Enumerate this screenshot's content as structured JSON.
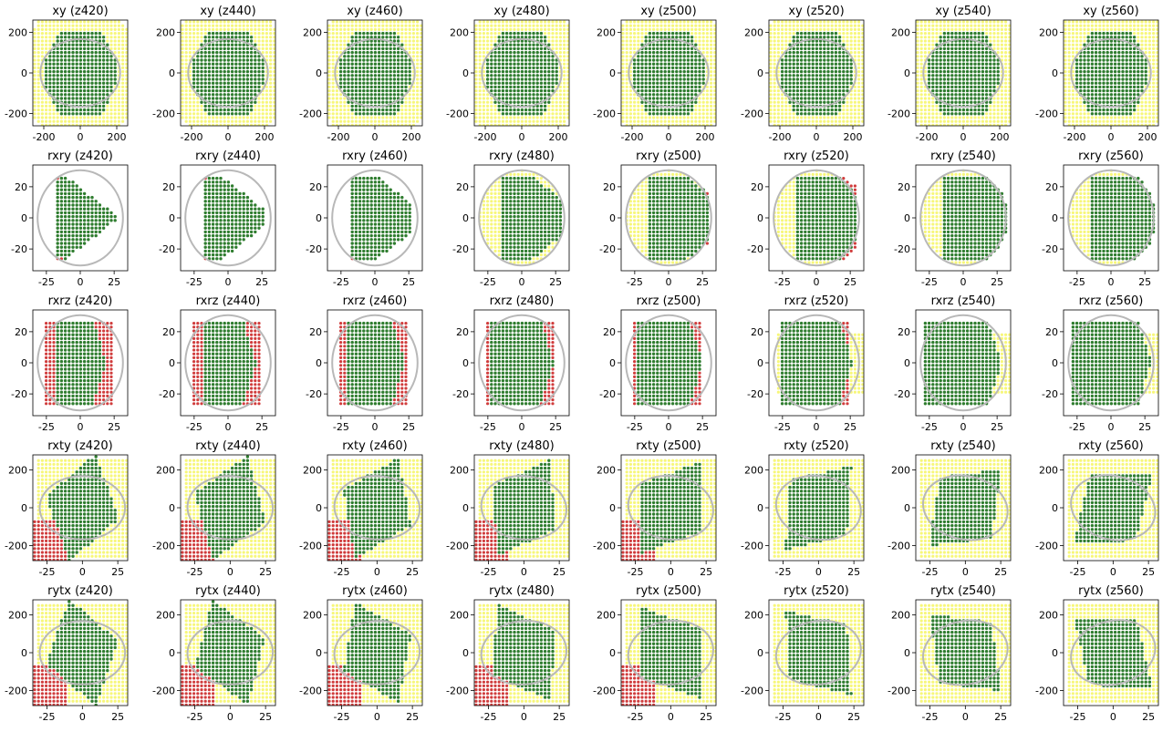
{
  "figure": {
    "rows": [
      "xy",
      "rxry",
      "rxrz",
      "rxty",
      "rytx"
    ],
    "z_values": [
      420,
      440,
      460,
      480,
      500,
      520,
      540,
      560
    ],
    "colors": {
      "inside": "#2f7d2f",
      "outside_ok": "#f7f77a",
      "fail": "#d03c3c",
      "edge": "#f0a050",
      "reference_circle": "#b8b8b8"
    }
  },
  "chart_data": {
    "type": "scatter",
    "layout": "5 rows x 8 columns of subplots",
    "panels": [
      {
        "title": "xy (z420)",
        "xlim": [
          -260,
          260
        ],
        "ylim": [
          -260,
          260
        ],
        "xticks": [
          -200,
          0,
          200
        ],
        "yticks": [
          -200,
          0,
          200
        ]
      },
      {
        "title": "xy (z440)",
        "xlim": [
          -260,
          260
        ],
        "ylim": [
          -260,
          260
        ],
        "xticks": [
          -200,
          0,
          200
        ],
        "yticks": [
          -200,
          0,
          200
        ]
      },
      {
        "title": "xy (z460)",
        "xlim": [
          -260,
          260
        ],
        "ylim": [
          -260,
          260
        ],
        "xticks": [
          -200,
          0,
          200
        ],
        "yticks": [
          -200,
          0,
          200
        ]
      },
      {
        "title": "xy (z480)",
        "xlim": [
          -260,
          260
        ],
        "ylim": [
          -260,
          260
        ],
        "xticks": [
          -200,
          0,
          200
        ],
        "yticks": [
          -200,
          0,
          200
        ]
      },
      {
        "title": "xy (z500)",
        "xlim": [
          -260,
          260
        ],
        "ylim": [
          -260,
          260
        ],
        "xticks": [
          -200,
          0,
          200
        ],
        "yticks": [
          -200,
          0,
          200
        ]
      },
      {
        "title": "xy (z520)",
        "xlim": [
          -260,
          260
        ],
        "ylim": [
          -260,
          260
        ],
        "xticks": [
          -200,
          0,
          200
        ],
        "yticks": [
          -200,
          0,
          200
        ]
      },
      {
        "title": "xy (z540)",
        "xlim": [
          -260,
          260
        ],
        "ylim": [
          -260,
          260
        ],
        "xticks": [
          -200,
          0,
          200
        ],
        "yticks": [
          -200,
          0,
          200
        ]
      },
      {
        "title": "xy (z560)",
        "xlim": [
          -260,
          260
        ],
        "ylim": [
          -260,
          260
        ],
        "xticks": [
          -200,
          0,
          200
        ],
        "yticks": [
          -200,
          0,
          200
        ]
      },
      {
        "title": "rxry (z420)",
        "xlim": [
          -35,
          35
        ],
        "ylim": [
          -34,
          34
        ],
        "xticks": [
          -25,
          0,
          25
        ],
        "yticks": [
          -20,
          0,
          20
        ]
      },
      {
        "title": "rxry (z440)",
        "xlim": [
          -35,
          35
        ],
        "ylim": [
          -34,
          34
        ],
        "xticks": [
          -25,
          0,
          25
        ],
        "yticks": [
          -20,
          0,
          20
        ]
      },
      {
        "title": "rxry (z460)",
        "xlim": [
          -35,
          35
        ],
        "ylim": [
          -34,
          34
        ],
        "xticks": [
          -25,
          0,
          25
        ],
        "yticks": [
          -20,
          0,
          20
        ]
      },
      {
        "title": "rxry (z480)",
        "xlim": [
          -35,
          35
        ],
        "ylim": [
          -34,
          34
        ],
        "xticks": [
          -25,
          0,
          25
        ],
        "yticks": [
          -20,
          0,
          20
        ]
      },
      {
        "title": "rxry (z500)",
        "xlim": [
          -35,
          35
        ],
        "ylim": [
          -34,
          34
        ],
        "xticks": [
          -25,
          0,
          25
        ],
        "yticks": [
          -20,
          0,
          20
        ]
      },
      {
        "title": "rxry (z520)",
        "xlim": [
          -35,
          35
        ],
        "ylim": [
          -34,
          34
        ],
        "xticks": [
          -25,
          0,
          25
        ],
        "yticks": [
          -20,
          0,
          20
        ]
      },
      {
        "title": "rxry (z540)",
        "xlim": [
          -35,
          35
        ],
        "ylim": [
          -34,
          34
        ],
        "xticks": [
          -25,
          0,
          25
        ],
        "yticks": [
          -20,
          0,
          20
        ]
      },
      {
        "title": "rxry (z560)",
        "xlim": [
          -35,
          35
        ],
        "ylim": [
          -34,
          34
        ],
        "xticks": [
          -25,
          0,
          25
        ],
        "yticks": [
          -20,
          0,
          20
        ]
      },
      {
        "title": "rxrz (z420)",
        "xlim": [
          -35,
          35
        ],
        "ylim": [
          -34,
          34
        ],
        "xticks": [
          -25,
          0,
          25
        ],
        "yticks": [
          -20,
          0,
          20
        ]
      },
      {
        "title": "rxrz (z440)",
        "xlim": [
          -35,
          35
        ],
        "ylim": [
          -34,
          34
        ],
        "xticks": [
          -25,
          0,
          25
        ],
        "yticks": [
          -20,
          0,
          20
        ]
      },
      {
        "title": "rxrz (z460)",
        "xlim": [
          -35,
          35
        ],
        "ylim": [
          -34,
          34
        ],
        "xticks": [
          -25,
          0,
          25
        ],
        "yticks": [
          -20,
          0,
          20
        ]
      },
      {
        "title": "rxrz (z480)",
        "xlim": [
          -35,
          35
        ],
        "ylim": [
          -34,
          34
        ],
        "xticks": [
          -25,
          0,
          25
        ],
        "yticks": [
          -20,
          0,
          20
        ]
      },
      {
        "title": "rxrz (z500)",
        "xlim": [
          -35,
          35
        ],
        "ylim": [
          -34,
          34
        ],
        "xticks": [
          -25,
          0,
          25
        ],
        "yticks": [
          -20,
          0,
          20
        ]
      },
      {
        "title": "rxrz (z520)",
        "xlim": [
          -35,
          35
        ],
        "ylim": [
          -34,
          34
        ],
        "xticks": [
          -25,
          0,
          25
        ],
        "yticks": [
          -20,
          0,
          20
        ]
      },
      {
        "title": "rxrz (z540)",
        "xlim": [
          -35,
          35
        ],
        "ylim": [
          -34,
          34
        ],
        "xticks": [
          -25,
          0,
          25
        ],
        "yticks": [
          -20,
          0,
          20
        ]
      },
      {
        "title": "rxrz (z560)",
        "xlim": [
          -35,
          35
        ],
        "ylim": [
          -34,
          34
        ],
        "xticks": [
          -25,
          0,
          25
        ],
        "yticks": [
          -20,
          0,
          20
        ]
      },
      {
        "title": "rxty (z420)",
        "xlim": [
          -35,
          32
        ],
        "ylim": [
          -280,
          280
        ],
        "xticks": [
          -25,
          0,
          25
        ],
        "yticks": [
          -200,
          0,
          200
        ]
      },
      {
        "title": "rxty (z440)",
        "xlim": [
          -35,
          32
        ],
        "ylim": [
          -280,
          280
        ],
        "xticks": [
          -25,
          0,
          25
        ],
        "yticks": [
          -200,
          0,
          200
        ]
      },
      {
        "title": "rxty (z460)",
        "xlim": [
          -35,
          32
        ],
        "ylim": [
          -280,
          280
        ],
        "xticks": [
          -25,
          0,
          25
        ],
        "yticks": [
          -200,
          0,
          200
        ]
      },
      {
        "title": "rxty (z480)",
        "xlim": [
          -35,
          32
        ],
        "ylim": [
          -280,
          280
        ],
        "xticks": [
          -25,
          0,
          25
        ],
        "yticks": [
          -200,
          0,
          200
        ]
      },
      {
        "title": "rxty (z500)",
        "xlim": [
          -35,
          32
        ],
        "ylim": [
          -280,
          280
        ],
        "xticks": [
          -25,
          0,
          25
        ],
        "yticks": [
          -200,
          0,
          200
        ]
      },
      {
        "title": "rxty (z520)",
        "xlim": [
          -35,
          32
        ],
        "ylim": [
          -280,
          280
        ],
        "xticks": [
          -25,
          0,
          25
        ],
        "yticks": [
          -200,
          0,
          200
        ]
      },
      {
        "title": "rxty (z540)",
        "xlim": [
          -35,
          32
        ],
        "ylim": [
          -280,
          280
        ],
        "xticks": [
          -25,
          0,
          25
        ],
        "yticks": [
          -200,
          0,
          200
        ]
      },
      {
        "title": "rxty (z560)",
        "xlim": [
          -35,
          32
        ],
        "ylim": [
          -280,
          280
        ],
        "xticks": [
          -25,
          0,
          25
        ],
        "yticks": [
          -200,
          0,
          200
        ]
      },
      {
        "title": "rytx (z420)",
        "xlim": [
          -35,
          32
        ],
        "ylim": [
          -280,
          280
        ],
        "xticks": [
          -25,
          0,
          25
        ],
        "yticks": [
          -200,
          0,
          200
        ]
      },
      {
        "title": "rytx (z440)",
        "xlim": [
          -35,
          32
        ],
        "ylim": [
          -280,
          280
        ],
        "xticks": [
          -25,
          0,
          25
        ],
        "yticks": [
          -200,
          0,
          200
        ]
      },
      {
        "title": "rytx (z460)",
        "xlim": [
          -35,
          32
        ],
        "ylim": [
          -280,
          280
        ],
        "xticks": [
          -25,
          0,
          25
        ],
        "yticks": [
          -200,
          0,
          200
        ]
      },
      {
        "title": "rytx (z480)",
        "xlim": [
          -35,
          32
        ],
        "ylim": [
          -280,
          280
        ],
        "xticks": [
          -25,
          0,
          25
        ],
        "yticks": [
          -200,
          0,
          200
        ]
      },
      {
        "title": "rytx (z500)",
        "xlim": [
          -35,
          32
        ],
        "ylim": [
          -280,
          280
        ],
        "xticks": [
          -25,
          0,
          25
        ],
        "yticks": [
          -200,
          0,
          200
        ]
      },
      {
        "title": "rytx (z520)",
        "xlim": [
          -35,
          32
        ],
        "ylim": [
          -280,
          280
        ],
        "xticks": [
          -25,
          0,
          25
        ],
        "yticks": [
          -200,
          0,
          200
        ]
      },
      {
        "title": "rytx (z540)",
        "xlim": [
          -35,
          32
        ],
        "ylim": [
          -280,
          280
        ],
        "xticks": [
          -25,
          0,
          25
        ],
        "yticks": [
          -200,
          0,
          200
        ]
      },
      {
        "title": "rytx (z560)",
        "xlim": [
          -35,
          32
        ],
        "ylim": [
          -280,
          280
        ],
        "xticks": [
          -25,
          0,
          25
        ],
        "yticks": [
          -200,
          0,
          200
        ]
      }
    ]
  }
}
